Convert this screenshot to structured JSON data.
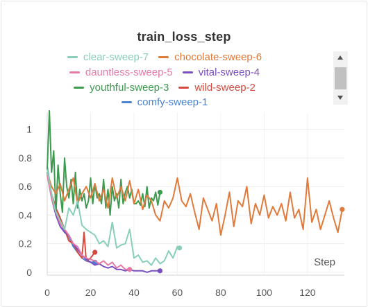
{
  "panel": {
    "title": "train_loss_step"
  },
  "chart_data": {
    "type": "line",
    "title": "train_loss_step",
    "xlabel": "Step",
    "ylabel": "",
    "xlim": [
      0,
      137
    ],
    "ylim": [
      -0.02,
      1.12
    ],
    "xticks": [
      0,
      20,
      40,
      60,
      80,
      100,
      120
    ],
    "yticks": [
      0,
      0.2,
      0.4,
      0.6,
      0.8,
      1
    ],
    "grid": true,
    "legend_position": "top",
    "series": [
      {
        "name": "clear-sweep-7",
        "color": "#87cfb9",
        "x": [
          0,
          2,
          4,
          6,
          8,
          10,
          12,
          14,
          16,
          18,
          20,
          22,
          24,
          26,
          28,
          30,
          32,
          34,
          36,
          38,
          40,
          42,
          44,
          46,
          48,
          50,
          52,
          54,
          56,
          58,
          60,
          61
        ],
        "y": [
          0.72,
          0.55,
          0.42,
          0.36,
          0.3,
          0.45,
          0.4,
          0.5,
          0.33,
          0.3,
          0.28,
          0.26,
          0.2,
          0.22,
          0.18,
          0.35,
          0.17,
          0.19,
          0.2,
          0.3,
          0.1,
          0.12,
          0.07,
          0.08,
          0.05,
          0.1,
          0.06,
          0.08,
          0.15,
          0.1,
          0.18,
          0.17
        ]
      },
      {
        "name": "chocolate-sweep-6",
        "color": "#e07a3b",
        "x": [
          0,
          2,
          4,
          6,
          8,
          10,
          12,
          14,
          16,
          18,
          20,
          22,
          24,
          26,
          28,
          30,
          32,
          34,
          36,
          38,
          40,
          42,
          44,
          46,
          48,
          50,
          52,
          54,
          56,
          58,
          60,
          62,
          64,
          66,
          68,
          70,
          72,
          74,
          76,
          78,
          80,
          82,
          84,
          86,
          88,
          90,
          92,
          94,
          96,
          98,
          100,
          102,
          104,
          106,
          108,
          110,
          112,
          114,
          116,
          118,
          120,
          122,
          124,
          126,
          128,
          130,
          132,
          134,
          136
        ],
        "y": [
          0.7,
          0.6,
          0.55,
          0.62,
          0.5,
          0.58,
          0.66,
          0.48,
          0.55,
          0.6,
          0.52,
          0.62,
          0.5,
          0.58,
          0.45,
          0.66,
          0.52,
          0.6,
          0.5,
          0.64,
          0.48,
          0.58,
          0.44,
          0.54,
          0.5,
          0.4,
          0.36,
          0.5,
          0.45,
          0.52,
          0.66,
          0.5,
          0.46,
          0.55,
          0.42,
          0.3,
          0.52,
          0.44,
          0.36,
          0.48,
          0.26,
          0.4,
          0.56,
          0.32,
          0.5,
          0.46,
          0.6,
          0.34,
          0.48,
          0.4,
          0.54,
          0.38,
          0.46,
          0.4,
          0.48,
          0.36,
          0.56,
          0.38,
          0.44,
          0.3,
          0.66,
          0.35,
          0.44,
          0.3,
          0.4,
          0.5,
          0.38,
          0.28,
          0.44
        ]
      },
      {
        "name": "dauntless-sweep-5",
        "color": "#e57aa7",
        "x": [
          0,
          2,
          4,
          6,
          8,
          10,
          12,
          14,
          16,
          18,
          20,
          22,
          24,
          26,
          28,
          30,
          32,
          34,
          36,
          38
        ],
        "y": [
          0.68,
          0.52,
          0.42,
          0.34,
          0.3,
          0.26,
          0.2,
          0.18,
          0.12,
          0.1,
          0.09,
          0.08,
          0.06,
          0.08,
          0.05,
          0.07,
          0.03,
          0.05,
          0.02,
          0.02
        ]
      },
      {
        "name": "vital-sweep-4",
        "color": "#7a4fbf",
        "x": [
          0,
          2,
          4,
          6,
          8,
          10,
          12,
          14,
          16,
          18,
          20,
          22,
          24,
          26,
          28,
          30,
          32,
          34,
          36,
          38,
          40,
          42,
          44,
          46,
          48,
          50,
          52
        ],
        "y": [
          0.7,
          0.52,
          0.4,
          0.32,
          0.28,
          0.26,
          0.2,
          0.16,
          0.12,
          0.09,
          0.07,
          0.05,
          0.06,
          0.04,
          0.03,
          0.04,
          0.02,
          0.02,
          0.01,
          0.02,
          0.01,
          0.01,
          0.01,
          0.0,
          0.01,
          0.01,
          0.01
        ]
      },
      {
        "name": "youthful-sweep-3",
        "color": "#3d9a4f",
        "x": [
          0,
          1,
          2,
          3,
          4,
          5,
          6,
          7,
          8,
          9,
          10,
          11,
          12,
          13,
          14,
          15,
          16,
          17,
          18,
          19,
          20,
          21,
          22,
          23,
          24,
          25,
          26,
          27,
          28,
          29,
          30,
          31,
          32,
          33,
          34,
          35,
          36,
          37,
          38,
          39,
          40,
          41,
          42,
          43,
          44,
          45,
          46,
          47,
          48,
          49,
          50,
          51,
          52
        ],
        "y": [
          0.72,
          1.13,
          0.7,
          0.85,
          0.4,
          0.75,
          0.55,
          0.42,
          0.8,
          0.6,
          0.52,
          0.65,
          0.48,
          0.7,
          0.45,
          0.58,
          0.5,
          0.55,
          0.45,
          0.5,
          0.66,
          0.48,
          0.62,
          0.52,
          0.55,
          0.48,
          0.65,
          0.45,
          0.58,
          0.4,
          0.6,
          0.5,
          0.55,
          0.45,
          0.65,
          0.48,
          0.56,
          0.6,
          0.52,
          0.58,
          0.48,
          0.48,
          0.5,
          0.47,
          0.55,
          0.46,
          0.6,
          0.45,
          0.52,
          0.5,
          0.56,
          0.47,
          0.56
        ]
      },
      {
        "name": "wild-sweep-2",
        "color": "#d44a3e",
        "x": [
          0,
          2,
          4,
          6,
          8,
          10,
          12,
          14,
          16,
          17,
          18,
          20,
          22
        ],
        "y": [
          0.7,
          0.55,
          0.45,
          0.38,
          0.3,
          0.22,
          0.2,
          0.14,
          0.1,
          0.28,
          0.08,
          0.1,
          0.14
        ]
      },
      {
        "name": "comfy-sweep-1",
        "color": "#4a82d4",
        "x": [
          0,
          2,
          4,
          6,
          8,
          10,
          12,
          14,
          16,
          18,
          20,
          22
        ],
        "y": [
          0.74,
          0.55,
          0.42,
          0.36,
          0.28,
          0.25,
          0.18,
          0.14,
          0.1,
          0.08,
          0.07,
          0.07
        ]
      }
    ]
  }
}
